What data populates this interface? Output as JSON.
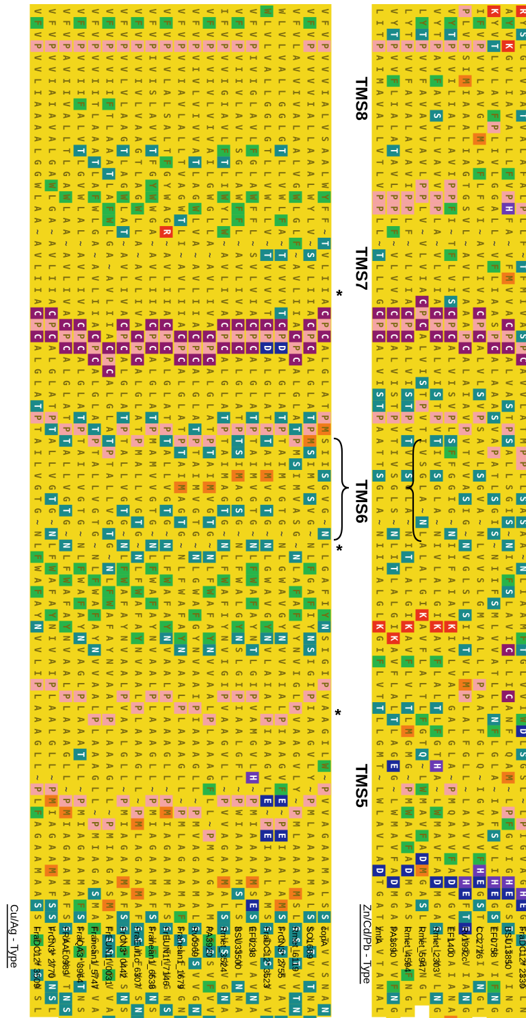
{
  "groups": [
    {
      "title": "Cu/Ag - Type",
      "proteins": [
        "FraDC12* 3509",
        "FrCN3* 2770",
        "FRAAL0989",
        "FraQA3* 3964",
        "Franean1_5747",
        "FrEUN1f_0031",
        "FrCN3* 0442",
        "FraEuI1c_6307",
        "Franean1_6538",
        "FrEUN1f_7146",
        "Franean1_1679",
        "Rv0969",
        "PA3920",
        "Rmet_3524",
        "BSU33500",
        "EF0298",
        "FraDC12* 3523",
        "FrCN3* 2755",
        "Rmet_6119",
        "SO1689",
        "copA"
      ],
      "sequences": [
        "VFVPVVLIAAAALGGWLAA~AVLIIACPCALGLATPTAILVGTG~NLFWAFAYNVVLIPLAAAGLL~PLFAGAAMAASSLFVVSNSL",
        "VFVPVVIAIAVALGAWLGA~AVLIIACPCALGLATPTALLVGTG~NLFWAFAYNIVAIPLAALGLL~PMIAGAAMAFSSVFVVGNSL",
        "VFVPAVIIVALLTLGAWLAA~AVLIVACPCALGLATPTALLVGTG~NLFWAFAYNVAALPLAAAGLL~PMIAGAAMAFSSVFVVTNSL",
        "VFVPVVIIFALVTLGVWLAL~AVLIVACPCALGLATPTAILVGTG~NLFWAFAYNVAGLPLAAATLL~PMIAGAAMAFSSVFVVTNSL",
        "VFVPVVIITLAAATLAFWLGA~AVLIIACPCALGLATPTALLVGTG~NLFWAFAYNVVAALPLAAAGLL~PMIAGASMAFSSVFVVANSL",
        "VFVPVVIIFTLAAATLAFWLGA~AVLIIACPCALGLATPTALLVGTG~NLFWAFAYNVAALPLAAAGLL~PMIAGASMAFSSVFVVANSL",
        "VFVPVVLVLAAGTLAGWLAT~AVLIVACPCALGLATPTALLVGTG~NLFWAFAYNVAALPVAALGLL~PMIAGAAMAFSSVFVVSNSL",
        "VFVPVVIVLVAAGTLAGWLLA~AVLIVACPCALGLATPMALLVGTG~NLFWAFAYNVAALPLAAAGLL~PMLAGAAMAFSSVFVVSNSL",
        "VFVPIVISLAVVTFGYWWGA~AVLIIACPCALGLATPMAMVVGTG~NLFWAFAYNVAALPLAAAGLL~PMIAGAAMAFSSVFVVGNSL",
        "VFVPVVLALSALTFGYWAGR~AVLIIACPCALGLATPTALLVGTG~NLFWAFAYNVAALPLAAAGLL~PMIAGAAMAFSSLFVVGNSL",
        "VFVPVVIAVLALLTVAGWTLI~AVLIIACPCALGLATPTAIMAGTG~NLFWAFAYNAAALPLAAAGLL~PMLAGAAMAFSSLFVVGNSL",
        "VFVPVIVLVIVVATLAGWLVA~AVLIIACPCALGLATPTAIMVGTG~NLGWAFGYNVAAIPIAAAGLL~PMVAGAAMALSSVSVVGNAL",
        "VFVPVVIVLVIVAILGWGLLA~AVLIVACPCALGLATPTAIMVGTG~NLFWAFAYNVVAALPLAAAGFLL~PMVAGAAMAFSSVFVVTNSL",
        "IFVPVVIGIAVLFTLIWYLW~AVLIVACPCALGLATPTAIMAGTG~NLFWAFIYNVIGIPVAAGVLL~PVVAGAAMALSSVSVVGNAL",
        "VFVPVIIVLAVLSGLAWFFL~AVLIVACPCALGLATPTSIMAGSG~NLFWALGYNSLGIPIAALGFL~PWIAAAAMSLSSVSVLNNAL",
        "VFVPIVIGLAVLFGLAWFFL~SVLVIACPCALGLATPTAIMVGTG~NLFWAFAYNTLGIPVAMGVLH~PMIAAAAMSESGVLVAVNAL",
        "WLVLVALLGGLGTLLVWLLV~TVVVVTCPDALGLATPTAIMVGTG~NLGWAVGYNVLAIALPIAAGVLE~PEIAALAMSSGSSLVAVNAL",
        "WLVLVALLGGLGTLLVWLFA~TVVVVTCPDALGLATPTAIMVGTG~NLGWAVGYNVVAIALPIAAGVFE~PEIAALAMSSGSSFVAVNAL",
        "VFVLAVVIVALAALVGWLGLF~AVLIIACPCALGLATPMSIMVASG~NLAFAFVYNVIGLPVAAGVLY~PMLAAAAMSLSSLTVVTNAL",
        "VFVPVVVVIALLAAALWYLV~SVLIIACPCALGLATPMSIMVSVG~NLFGAFIYNSIGIPIAAGVLY~PMLAAAAMALSSLTVVTNAN",
        "VFVPVVVIALVSAALWYFF~TVLIIACPCALGLATPMSIISGVG~NLLGAFIYNSIGIPVAAGILW~PVVAGAAMALSSITVVSNAN"
      ]
    },
    {
      "title": "Zn/Cd/Pb - Type",
      "proteins": [
        "zntA",
        "PA3690",
        "Rmet_4594",
        "Rmet_5947",
        "Rmet_2303",
        "EF1400",
        "Rv1992c",
        "CC2726",
        "EF0758",
        "BSU13850",
        "FraDC12* 2330"
      ],
      "sequences": [
        "LITPAIMAVALLVTLVPPLL~TLLLGCPCALVISTPAATTSGLA~NIIIALGLKGIFLVTTLLGMT~LWLAVLADTGATVLVTANAL",
        "VYTPVVFLIALATAVLPPLF~VLVVACPCALVISTPVTIVSGLS~NLITLALGIKAVFLALTLAGEG~LWMAVFADMGASLLVVFNGL",
        "LYTPVVFAVALAVAVIPPLF~VLVIACPCALVISTPVTVVSGLA~NITLALGIKAVFLVLTLMGMG~PMWAVFADMGASLLVVFNGL",
        "LYTPVVFAVAVVAVLPPLV~VLVIACPCALVISTPVTIVSGLA~NLALALGIKAVFLALTLFGTQ~LWMAVFADMGASLLVVFNGL",
        "VYTPAVFAVSVLVAVVPPLA~VLVIACPCALVISTPVTIVSGLA~NIVLALGIKAVFLALTLFGTHA~LWMAVFADMGASLLVVLNGL",
        "VYTPVVILIALLAVIPPFI~TFLVISCPCALVISVPLSFFGGIG~NIIFAIAVKIVLVALGALGLA~PMQAAVFADVGVTLIAIANAM",
        "PLVPSIMIAAALIAGTGSVL~AVLVAAAPCALAIAVPVTVVASIG~NVGLSLSIITVLMPLALFGLL~LAAVVLVHEFTEVIVIANGV",
        "IFVPVVLAVGLMLAFLFVI~AVLIVACPCALVLSVPSAVLSGVA~NLVVSLGMVALLLPAALFGLQ~IGVAVVFHEGSTLLVIANGL",
        "KYVTLVLAVFPLIVLGGALL~VFLIAASPCALAAASVAPATLSGIS~NIIFSMLVVATLLLNFLGLA~IAFSVLIHEGSTLVVIFNGL",
        "AYVKGVLIAVALLLFVPHFA~VFMVVACPCALVASTPSALLSGIS~NIVFSLAVICLLICANFLQAM~LPFGVIGHEGSTIILVINGL",
        "RYSLGLVAATVALAFALPLLF~TFMIVASPCAVVLATMPPLLSASAA~NLIAAMFTGLVVIWDLSGSL~LPIGVAGHEGSTLVIGLNAL"
      ]
    }
  ],
  "tms_labels": [
    "TMS5",
    "TMS6",
    "TMS7",
    "TMS8"
  ],
  "marker": "*",
  "colors": {
    "background_residue": "#f2d61c",
    "hydrophilic": "#1a8a8a",
    "small": "#28b44a",
    "proline": "#f4a4a4",
    "cysteine": "#8c1a6a",
    "charged_acidic": "#1a2a9a",
    "charged_basic": "#e8321c",
    "methionine": "#f07a1a",
    "histidine": "#6a3ab4"
  }
}
